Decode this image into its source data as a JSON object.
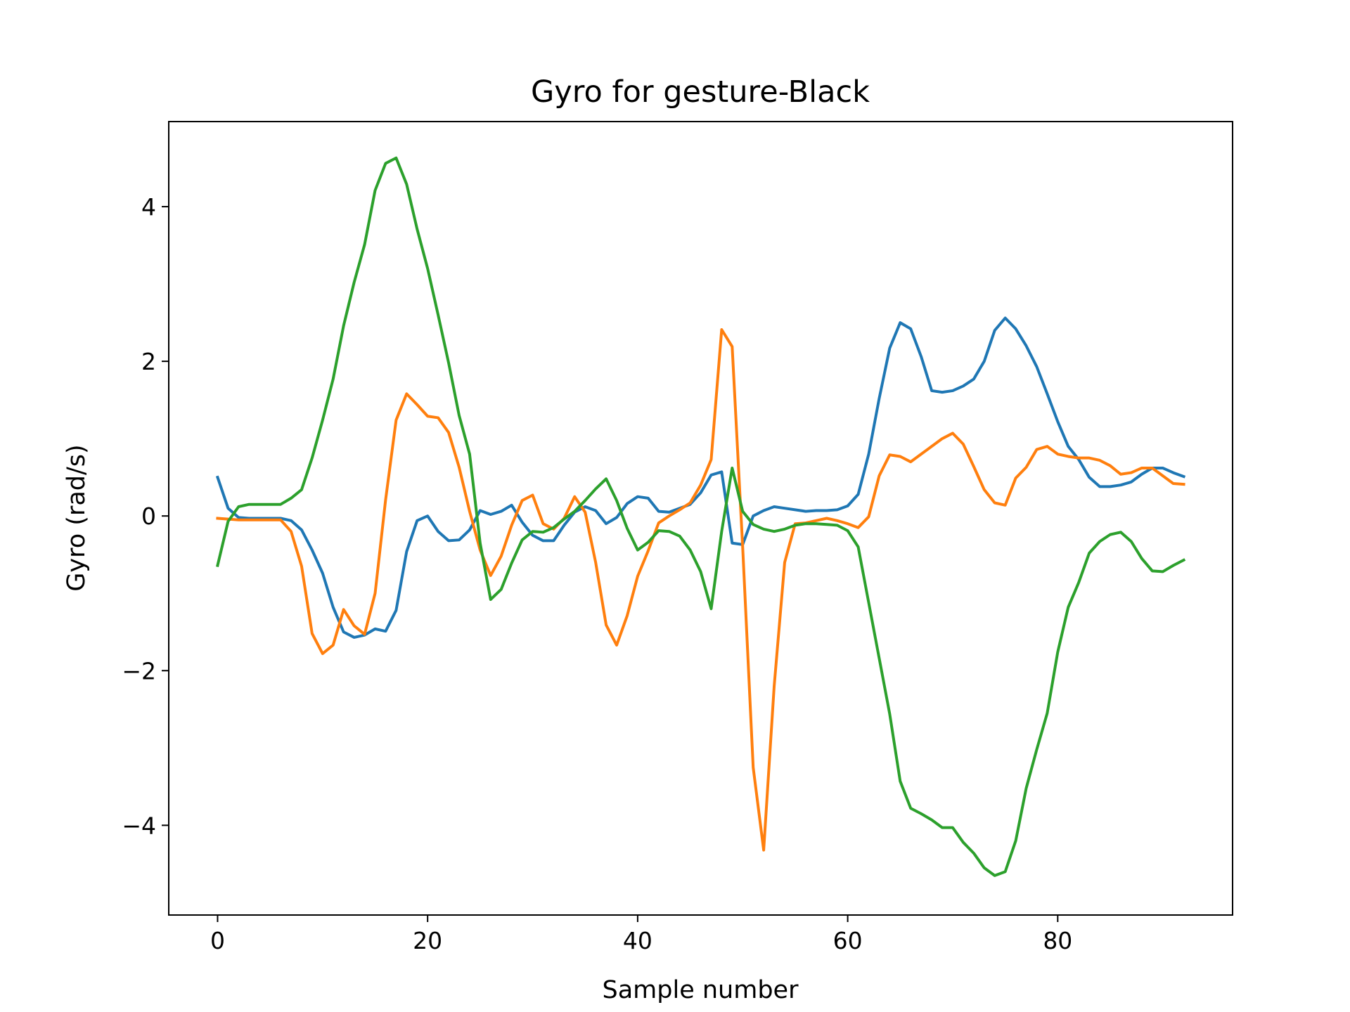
{
  "chart_data": {
    "type": "line",
    "title": "Gyro for gesture-Black",
    "xlabel": "Sample number",
    "ylabel": "Gyro  (rad/s)",
    "xlim": [
      -4.65,
      96.65
    ],
    "ylim": [
      -5.16,
      5.1
    ],
    "xticks": [
      0,
      20,
      40,
      60,
      80
    ],
    "yticks": [
      -4,
      -2,
      0,
      2,
      4
    ],
    "xtick_labels": [
      "0",
      "20",
      "40",
      "60",
      "80"
    ],
    "ytick_labels": [
      "−4",
      "−2",
      "0",
      "2",
      "4"
    ],
    "grid": false,
    "legend": "none",
    "series": [
      {
        "color": "#1f77b4",
        "values": [
          0.5,
          0.1,
          -0.02,
          -0.03,
          -0.03,
          -0.03,
          -0.03,
          -0.06,
          -0.18,
          -0.44,
          -0.74,
          -1.18,
          -1.5,
          -1.57,
          -1.54,
          -1.46,
          -1.49,
          -1.22,
          -0.46,
          -0.06,
          0,
          -0.2,
          -0.32,
          -0.31,
          -0.18,
          0.07,
          0.02,
          0.06,
          0.14,
          -0.08,
          -0.25,
          -0.32,
          -0.32,
          -0.12,
          0.05,
          0.12,
          0.07,
          -0.1,
          -0.02,
          0.16,
          0.25,
          0.23,
          0.06,
          0.05,
          0.1,
          0.15,
          0.3,
          0.53,
          0.57,
          -0.35,
          -0.37,
          0,
          0.07,
          0.12,
          0.1,
          0.08,
          0.06,
          0.07,
          0.07,
          0.08,
          0.13,
          0.28,
          0.8,
          1.52,
          2.17,
          2.5,
          2.42,
          2.06,
          1.62,
          1.6,
          1.62,
          1.68,
          1.77,
          2,
          2.4,
          2.56,
          2.42,
          2.2,
          1.93,
          1.58,
          1.22,
          0.9,
          0.73,
          0.5,
          0.38,
          0.38,
          0.4,
          0.44,
          0.54,
          0.62,
          0.62,
          0.56,
          0.51
        ]
      },
      {
        "color": "#ff7f0e",
        "values": [
          -0.03,
          -0.04,
          -0.05,
          -0.05,
          -0.05,
          -0.05,
          -0.05,
          -0.2,
          -0.65,
          -1.52,
          -1.78,
          -1.67,
          -1.21,
          -1.42,
          -1.53,
          -1.0,
          0.21,
          1.24,
          1.58,
          1.44,
          1.29,
          1.27,
          1.08,
          0.63,
          0.06,
          -0.44,
          -0.77,
          -0.52,
          -0.12,
          0.2,
          0.27,
          -0.1,
          -0.17,
          -0.03,
          0.25,
          0.05,
          -0.6,
          -1.41,
          -1.67,
          -1.29,
          -0.78,
          -0.45,
          -0.09,
          0.0,
          0.08,
          0.17,
          0.4,
          0.73,
          2.41,
          2.19,
          -0.4,
          -3.25,
          -4.32,
          -2.2,
          -0.6,
          -0.1,
          -0.09,
          -0.06,
          -0.03,
          -0.06,
          -0.1,
          -0.15,
          -0.01,
          0.52,
          0.79,
          0.77,
          0.7,
          0.8,
          0.9,
          1.0,
          1.07,
          0.93,
          0.64,
          0.34,
          0.17,
          0.14,
          0.49,
          0.63,
          0.86,
          0.9,
          0.8,
          0.77,
          0.75,
          0.75,
          0.72,
          0.65,
          0.54,
          0.56,
          0.62,
          0.62,
          0.52,
          0.42,
          0.41
        ]
      },
      {
        "color": "#2ca02c",
        "values": [
          -0.64,
          -0.07,
          0.12,
          0.15,
          0.15,
          0.15,
          0.15,
          0.23,
          0.34,
          0.75,
          1.24,
          1.77,
          2.46,
          3.02,
          3.51,
          4.21,
          4.56,
          4.63,
          4.29,
          3.71,
          3.2,
          2.6,
          1.98,
          1.3,
          0.8,
          -0.35,
          -1.08,
          -0.95,
          -0.61,
          -0.31,
          -0.2,
          -0.21,
          -0.15,
          -0.04,
          0.06,
          0.2,
          0.35,
          0.48,
          0.2,
          -0.16,
          -0.44,
          -0.34,
          -0.19,
          -0.2,
          -0.26,
          -0.44,
          -0.72,
          -1.2,
          -0.2,
          0.62,
          0.06,
          -0.11,
          -0.17,
          -0.2,
          -0.17,
          -0.12,
          -0.1,
          -0.1,
          -0.11,
          -0.12,
          -0.19,
          -0.4,
          -1.12,
          -1.84,
          -2.56,
          -3.43,
          -3.78,
          -3.85,
          -3.93,
          -4.03,
          -4.03,
          -4.22,
          -4.36,
          -4.55,
          -4.65,
          -4.6,
          -4.2,
          -3.52,
          -3.02,
          -2.55,
          -1.76,
          -1.18,
          -0.86,
          -0.48,
          -0.33,
          -0.24,
          -0.21,
          -0.33,
          -0.55,
          -0.71,
          -0.72,
          -0.64,
          -0.57
        ]
      }
    ]
  }
}
